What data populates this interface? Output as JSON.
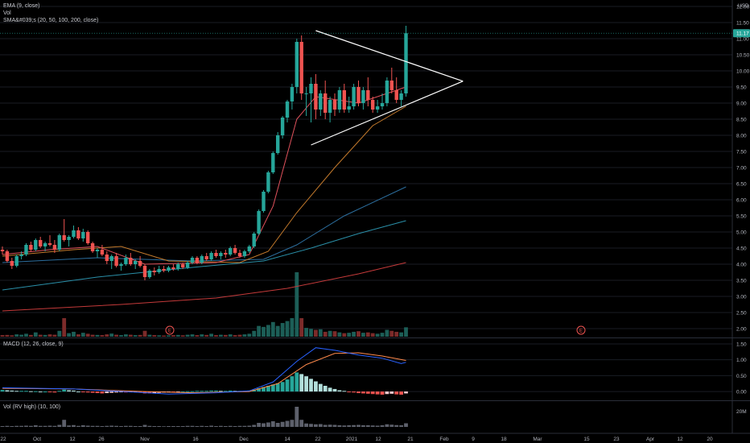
{
  "colors": {
    "up": "#26a69a",
    "down": "#ef5350",
    "upVol": "#1c5e57",
    "downVol": "#7c2b2a",
    "ema": "#e0525c",
    "sma20": "#c47a2c",
    "sma50": "#2c6e9e",
    "sma100": "#2a8fa8",
    "sma200": "#c43a3a",
    "macd": "#2962ff",
    "signal": "#ff8a4c",
    "grid": "#1a1d24",
    "text": "#b2b5be",
    "pattern": "#ffffff"
  },
  "legends": {
    "main": [
      "EMA (9, close)",
      "Vol",
      "SMA&#039;s (20, 50, 100, 200, close)"
    ],
    "macd": "MACD (12, 26, close, 9)",
    "rv": "Vol (RV high) (10, 100)"
  },
  "axis": {
    "currency": "USD",
    "price_ticks": [
      "12.00",
      "11.50",
      "11.00",
      "10.50",
      "10.00",
      "9.50",
      "9.00",
      "8.50",
      "8.00",
      "7.50",
      "7.00",
      "6.50",
      "6.00",
      "5.50",
      "5.00",
      "4.50",
      "4.00",
      "3.50",
      "3.00",
      "2.50",
      "2.00"
    ],
    "last_price": "11.17",
    "macd_ticks": [
      "1.50",
      "1.00",
      "0.50",
      "0.00"
    ],
    "rv_ticks": [
      "20M"
    ],
    "dates": [
      "22",
      "Oct",
      "12",
      "26",
      "Nov",
      "16",
      "Dec",
      "14",
      "22",
      "2021",
      "12",
      "21",
      "Feb",
      "9",
      "18",
      "Mar",
      "15",
      "23",
      "Apr",
      "12",
      "20"
    ],
    "earnings_marker": "E"
  },
  "chart_data": {
    "type": "candlestick",
    "title": "",
    "price_range": [
      1.75,
      12.2
    ],
    "last_price": 11.17,
    "candles": [
      [
        4.45,
        4.55,
        4.3,
        4.4
      ],
      [
        4.4,
        4.45,
        4.05,
        4.1
      ],
      [
        4.1,
        4.2,
        3.85,
        3.95
      ],
      [
        3.95,
        4.3,
        3.9,
        4.25
      ],
      [
        4.25,
        4.4,
        4.15,
        4.3
      ],
      [
        4.3,
        4.65,
        4.25,
        4.6
      ],
      [
        4.6,
        4.7,
        4.4,
        4.45
      ],
      [
        4.45,
        4.8,
        4.4,
        4.75
      ],
      [
        4.75,
        4.85,
        4.5,
        4.55
      ],
      [
        4.55,
        4.7,
        4.4,
        4.65
      ],
      [
        4.65,
        4.9,
        4.55,
        4.6
      ],
      [
        4.6,
        4.75,
        4.35,
        4.45
      ],
      [
        4.45,
        4.95,
        4.4,
        4.9
      ],
      [
        4.9,
        5.4,
        4.7,
        4.75
      ],
      [
        4.75,
        4.9,
        4.55,
        4.85
      ],
      [
        4.85,
        5.2,
        4.8,
        5.05
      ],
      [
        5.05,
        5.15,
        4.75,
        4.8
      ],
      [
        4.8,
        5.1,
        4.7,
        5.0
      ],
      [
        5.0,
        5.05,
        4.6,
        4.65
      ],
      [
        4.65,
        4.7,
        4.35,
        4.4
      ],
      [
        4.4,
        4.5,
        4.2,
        4.45
      ],
      [
        4.45,
        4.6,
        4.25,
        4.3
      ],
      [
        4.3,
        4.4,
        4.0,
        4.1
      ],
      [
        4.1,
        4.3,
        3.85,
        4.25
      ],
      [
        4.25,
        4.35,
        3.9,
        3.95
      ],
      [
        3.95,
        4.05,
        3.8,
        4.0
      ],
      [
        4.0,
        4.3,
        3.95,
        4.2
      ],
      [
        4.2,
        4.35,
        3.95,
        4.0
      ],
      [
        4.0,
        4.15,
        3.85,
        4.1
      ],
      [
        4.1,
        4.25,
        3.9,
        3.95
      ],
      [
        3.95,
        4.0,
        3.5,
        3.6
      ],
      [
        3.6,
        3.85,
        3.55,
        3.8
      ],
      [
        3.8,
        3.9,
        3.65,
        3.75
      ],
      [
        3.75,
        3.95,
        3.7,
        3.85
      ],
      [
        3.85,
        3.95,
        3.75,
        3.8
      ],
      [
        3.8,
        3.95,
        3.75,
        3.9
      ],
      [
        3.9,
        4.0,
        3.8,
        3.85
      ],
      [
        3.85,
        4.05,
        3.8,
        4.0
      ],
      [
        4.0,
        4.05,
        3.85,
        3.9
      ],
      [
        3.9,
        4.1,
        3.85,
        4.05
      ],
      [
        4.05,
        4.25,
        4.0,
        4.2
      ],
      [
        4.2,
        4.25,
        4.0,
        4.05
      ],
      [
        4.05,
        4.3,
        4.0,
        4.25
      ],
      [
        4.25,
        4.35,
        4.1,
        4.15
      ],
      [
        4.15,
        4.4,
        4.1,
        4.35
      ],
      [
        4.35,
        4.45,
        4.2,
        4.25
      ],
      [
        4.25,
        4.4,
        4.15,
        4.35
      ],
      [
        4.35,
        4.45,
        4.2,
        4.3
      ],
      [
        4.3,
        4.55,
        4.25,
        4.5
      ],
      [
        4.5,
        4.6,
        4.3,
        4.35
      ],
      [
        4.35,
        4.45,
        4.2,
        4.25
      ],
      [
        4.25,
        4.45,
        4.2,
        4.4
      ],
      [
        4.4,
        4.6,
        4.35,
        4.55
      ],
      [
        4.55,
        5.0,
        4.5,
        4.95
      ],
      [
        4.95,
        5.7,
        4.9,
        5.65
      ],
      [
        5.65,
        6.3,
        5.6,
        6.25
      ],
      [
        6.25,
        6.9,
        6.2,
        6.85
      ],
      [
        6.85,
        7.5,
        6.8,
        7.45
      ],
      [
        7.45,
        8.1,
        7.4,
        8.0
      ],
      [
        8.0,
        8.6,
        7.9,
        8.55
      ],
      [
        8.55,
        9.1,
        8.4,
        9.05
      ],
      [
        9.05,
        9.6,
        8.8,
        9.5
      ],
      [
        9.5,
        11.0,
        9.3,
        10.9
      ],
      [
        10.9,
        11.1,
        9.1,
        9.3
      ],
      [
        9.3,
        9.5,
        8.6,
        9.3
      ],
      [
        9.3,
        9.8,
        8.4,
        9.6
      ],
      [
        9.6,
        9.9,
        8.5,
        8.8
      ],
      [
        8.8,
        9.4,
        8.6,
        9.3
      ],
      [
        9.3,
        9.7,
        8.5,
        8.7
      ],
      [
        8.7,
        9.2,
        8.4,
        9.1
      ],
      [
        9.1,
        9.3,
        8.6,
        8.8
      ],
      [
        8.8,
        9.5,
        8.7,
        9.4
      ],
      [
        9.4,
        9.6,
        8.7,
        8.8
      ],
      [
        8.8,
        9.2,
        8.7,
        8.9
      ],
      [
        8.9,
        9.6,
        8.8,
        9.5
      ],
      [
        9.5,
        9.7,
        8.9,
        9.0
      ],
      [
        9.0,
        9.5,
        8.8,
        9.4
      ],
      [
        9.4,
        9.8,
        8.9,
        9.1
      ],
      [
        9.1,
        9.2,
        8.7,
        8.8
      ],
      [
        8.8,
        9.1,
        8.7,
        8.9
      ],
      [
        8.9,
        9.3,
        8.8,
        9.0
      ],
      [
        9.0,
        9.8,
        8.9,
        9.7
      ],
      [
        9.7,
        10.1,
        9.3,
        9.4
      ],
      [
        9.4,
        9.8,
        9.0,
        9.1
      ],
      [
        9.1,
        9.4,
        8.9,
        9.3
      ],
      [
        9.3,
        11.4,
        9.2,
        11.17
      ]
    ],
    "volume": [
      0.08,
      0.09,
      0.07,
      0.12,
      0.1,
      0.15,
      0.09,
      0.22,
      0.1,
      0.09,
      0.12,
      0.1,
      0.3,
      0.95,
      0.18,
      0.25,
      0.12,
      0.2,
      0.15,
      0.1,
      0.09,
      0.08,
      0.12,
      0.16,
      0.1,
      0.08,
      0.12,
      0.1,
      0.08,
      0.09,
      0.3,
      0.1,
      0.08,
      0.07,
      0.06,
      0.07,
      0.08,
      0.09,
      0.07,
      0.1,
      0.12,
      0.08,
      0.12,
      0.09,
      0.15,
      0.08,
      0.1,
      0.09,
      0.12,
      0.08,
      0.1,
      0.12,
      0.15,
      0.3,
      0.55,
      0.5,
      0.6,
      0.75,
      0.55,
      0.7,
      0.8,
      0.95,
      3.3,
      0.95,
      0.45,
      0.4,
      0.35,
      0.38,
      0.25,
      0.3,
      0.28,
      0.22,
      0.18,
      0.2,
      0.25,
      0.28,
      0.2,
      0.22,
      0.18,
      0.15,
      0.2,
      0.35,
      0.3,
      0.25,
      0.22,
      0.48
    ],
    "overlays": {
      "ema9": [
        [
          0,
          4.3
        ],
        [
          10,
          4.45
        ],
        [
          20,
          4.55
        ],
        [
          30,
          4.0
        ],
        [
          45,
          4.05
        ],
        [
          52,
          4.3
        ],
        [
          57,
          5.8
        ],
        [
          62,
          8.5
        ],
        [
          66,
          9.2
        ],
        [
          75,
          9.0
        ],
        [
          85,
          9.5
        ]
      ],
      "sma20": [
        [
          0,
          4.25
        ],
        [
          15,
          4.45
        ],
        [
          25,
          4.55
        ],
        [
          35,
          4.1
        ],
        [
          50,
          4.05
        ],
        [
          56,
          4.4
        ],
        [
          62,
          5.6
        ],
        [
          70,
          7.0
        ],
        [
          78,
          8.3
        ],
        [
          85,
          8.9
        ]
      ],
      "sma50": [
        [
          0,
          4.05
        ],
        [
          20,
          4.2
        ],
        [
          40,
          4.1
        ],
        [
          55,
          4.15
        ],
        [
          62,
          4.6
        ],
        [
          72,
          5.5
        ],
        [
          85,
          6.4
        ]
      ],
      "sma100": [
        [
          0,
          3.2
        ],
        [
          20,
          3.6
        ],
        [
          40,
          3.9
        ],
        [
          55,
          4.1
        ],
        [
          65,
          4.5
        ],
        [
          75,
          4.95
        ],
        [
          85,
          5.35
        ]
      ],
      "sma200": [
        [
          0,
          2.55
        ],
        [
          25,
          2.75
        ],
        [
          45,
          2.95
        ],
        [
          60,
          3.25
        ],
        [
          75,
          3.7
        ],
        [
          85,
          4.05
        ]
      ]
    },
    "pattern_lines": [
      [
        [
          66,
          11.25
        ],
        [
          97,
          9.68
        ]
      ],
      [
        [
          65,
          7.7
        ],
        [
          97,
          9.68
        ]
      ]
    ],
    "macd": {
      "range": [
        -0.15,
        1.55
      ],
      "line": [
        [
          0,
          0.12
        ],
        [
          15,
          0.08
        ],
        [
          28,
          -0.02
        ],
        [
          35,
          -0.08
        ],
        [
          45,
          -0.04
        ],
        [
          52,
          0.02
        ],
        [
          57,
          0.3
        ],
        [
          62,
          0.95
        ],
        [
          66,
          1.38
        ],
        [
          70,
          1.3
        ],
        [
          75,
          1.15
        ],
        [
          80,
          1.05
        ],
        [
          84,
          0.88
        ],
        [
          85,
          0.92
        ]
      ],
      "signal": [
        [
          0,
          0.1
        ],
        [
          15,
          0.08
        ],
        [
          30,
          0.0
        ],
        [
          40,
          -0.04
        ],
        [
          52,
          0.0
        ],
        [
          58,
          0.25
        ],
        [
          64,
          0.85
        ],
        [
          70,
          1.2
        ],
        [
          75,
          1.22
        ],
        [
          80,
          1.12
        ],
        [
          85,
          0.98
        ]
      ],
      "hist": [
        0.05,
        0.04,
        0.03,
        0.02,
        0.02,
        0.02,
        0.01,
        0.01,
        0.0,
        0.0,
        -0.02,
        -0.03,
        0.02,
        0.06,
        0.04,
        0.03,
        0.0,
        -0.02,
        -0.03,
        -0.04,
        -0.05,
        -0.06,
        -0.05,
        -0.04,
        -0.03,
        -0.02,
        -0.03,
        -0.02,
        -0.01,
        -0.02,
        -0.06,
        -0.06,
        -0.05,
        -0.04,
        -0.03,
        -0.02,
        -0.02,
        -0.01,
        0.0,
        0.01,
        0.01,
        0.02,
        0.02,
        0.02,
        0.03,
        0.03,
        0.02,
        0.02,
        0.03,
        0.02,
        0.02,
        0.02,
        0.03,
        0.06,
        0.1,
        0.14,
        0.18,
        0.22,
        0.26,
        0.3,
        0.38,
        0.48,
        0.6,
        0.55,
        0.48,
        0.4,
        0.32,
        0.24,
        0.18,
        0.12,
        0.08,
        0.04,
        0.02,
        -0.01,
        -0.03,
        -0.05,
        -0.06,
        -0.07,
        -0.08,
        -0.09,
        -0.1,
        -0.08,
        -0.07,
        -0.09,
        -0.1,
        -0.06
      ]
    },
    "rv_volume": [
      0.04,
      0.05,
      0.04,
      0.05,
      0.05,
      0.06,
      0.05,
      0.08,
      0.05,
      0.05,
      0.06,
      0.05,
      0.1,
      0.35,
      0.07,
      0.09,
      0.05,
      0.08,
      0.06,
      0.05,
      0.05,
      0.04,
      0.05,
      0.06,
      0.05,
      0.04,
      0.05,
      0.05,
      0.04,
      0.04,
      0.1,
      0.05,
      0.04,
      0.04,
      0.03,
      0.04,
      0.04,
      0.04,
      0.04,
      0.05,
      0.05,
      0.04,
      0.05,
      0.04,
      0.06,
      0.04,
      0.05,
      0.04,
      0.05,
      0.04,
      0.05,
      0.05,
      0.06,
      0.1,
      0.2,
      0.18,
      0.22,
      0.28,
      0.2,
      0.25,
      0.3,
      0.35,
      1.0,
      0.35,
      0.17,
      0.15,
      0.13,
      0.14,
      0.1,
      0.11,
      0.1,
      0.08,
      0.07,
      0.08,
      0.09,
      0.1,
      0.08,
      0.08,
      0.07,
      0.06,
      0.08,
      0.13,
      0.11,
      0.09,
      0.08,
      0.18
    ]
  }
}
